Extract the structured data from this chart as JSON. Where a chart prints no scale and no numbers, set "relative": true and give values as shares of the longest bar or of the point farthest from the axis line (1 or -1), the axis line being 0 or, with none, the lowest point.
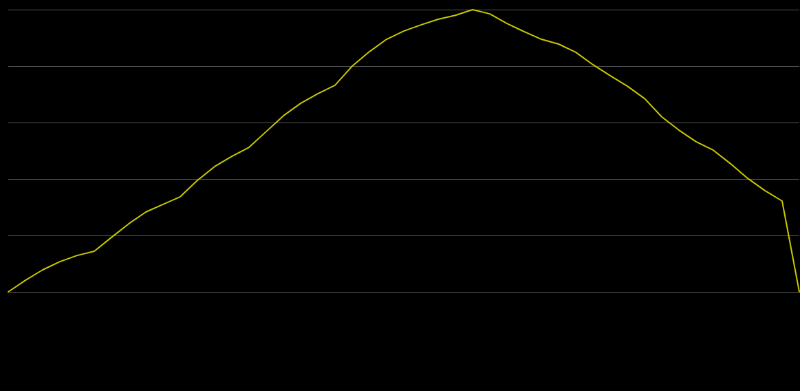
{
  "chart_data": {
    "type": "line",
    "relative": true,
    "grid": true,
    "marker": "none",
    "line_style": "solid",
    "categories": [
      null,
      null,
      null,
      null,
      null,
      null,
      null,
      null,
      null,
      null,
      null,
      null,
      null,
      null,
      null,
      null,
      null,
      null,
      null,
      null,
      null,
      null,
      null,
      null,
      null,
      null,
      null,
      null,
      null,
      null,
      null,
      null,
      null,
      null,
      null,
      null,
      null,
      null,
      null,
      null,
      null,
      null,
      null,
      null,
      null,
      null,
      null
    ],
    "series": [
      {
        "color": "#c8c800",
        "values": [
          0,
          0.041,
          0.078,
          0.107,
          0.129,
          0.144,
          0.193,
          0.241,
          0.283,
          0.31,
          0.337,
          0.395,
          0.444,
          0.48,
          0.512,
          0.568,
          0.624,
          0.668,
          0.702,
          0.732,
          0.8,
          0.851,
          0.895,
          0.924,
          0.946,
          0.966,
          0.98,
          1,
          0.985,
          0.951,
          0.922,
          0.895,
          0.878,
          0.849,
          0.805,
          0.766,
          0.729,
          0.685,
          0.62,
          0.573,
          0.532,
          0.502,
          0.454,
          0.402,
          0.359,
          0.322,
          0
        ]
      }
    ]
  }
}
